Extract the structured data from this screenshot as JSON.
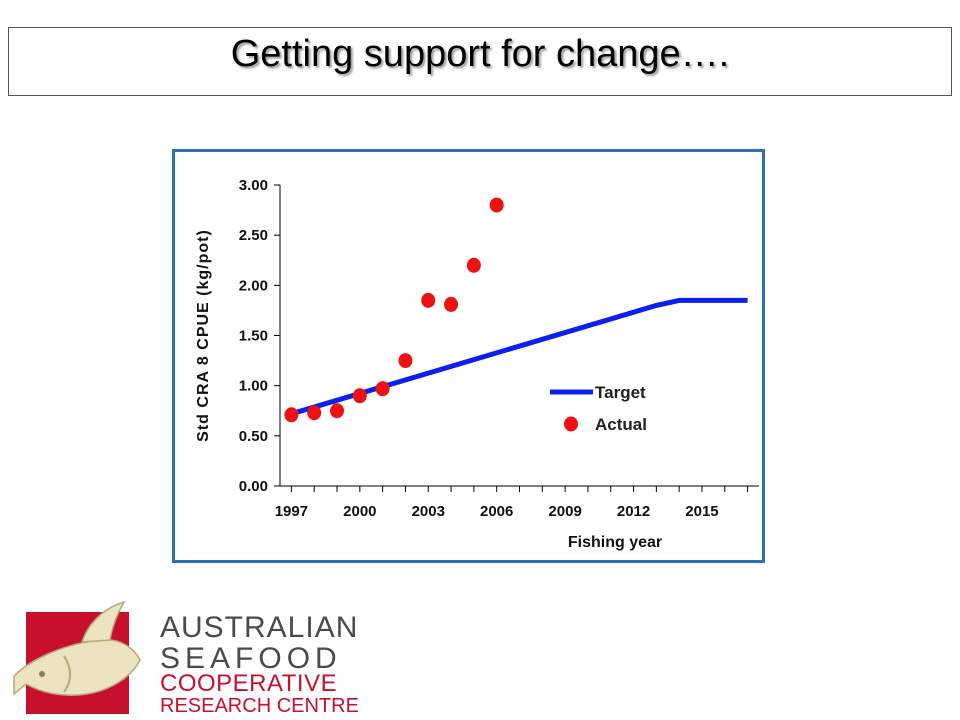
{
  "slide": {
    "title": "Getting support for change…."
  },
  "logo": {
    "lines": [
      "AUSTRALIAN",
      "SEAFOOD",
      "COOPERATIVE",
      "RESEARCH CENTRE"
    ],
    "red": "#c8102e",
    "grey": "#4a4a4a"
  },
  "chart_data": {
    "type": "line",
    "title": "",
    "xlabel": "Fishing year",
    "ylabel": "Std CRA 8 CPUE (kg/pot)",
    "xlim": [
      1996.5,
      2017.5
    ],
    "ylim": [
      0,
      3
    ],
    "x_ticks": [
      1997,
      2000,
      2003,
      2006,
      2009,
      2012,
      2015
    ],
    "y_ticks": [
      "0.00",
      "0.50",
      "1.00",
      "1.50",
      "2.00",
      "2.50",
      "3.00"
    ],
    "grid": false,
    "legend_position": "right",
    "series": [
      {
        "name": "Target",
        "kind": "line",
        "color": "#0a1ff0",
        "points": [
          [
            1997,
            0.72
          ],
          [
            2013,
            1.8
          ],
          [
            2014,
            1.85
          ],
          [
            2017,
            1.85
          ]
        ]
      },
      {
        "name": "Actual",
        "kind": "scatter",
        "color": "#ee1111",
        "points": [
          [
            1997,
            0.71
          ],
          [
            1998,
            0.73
          ],
          [
            1999,
            0.75
          ],
          [
            2000,
            0.9
          ],
          [
            2001,
            0.97
          ],
          [
            2002,
            1.25
          ],
          [
            2003,
            1.85
          ],
          [
            2004,
            1.81
          ],
          [
            2005,
            2.2
          ],
          [
            2006,
            2.8
          ]
        ]
      }
    ]
  }
}
